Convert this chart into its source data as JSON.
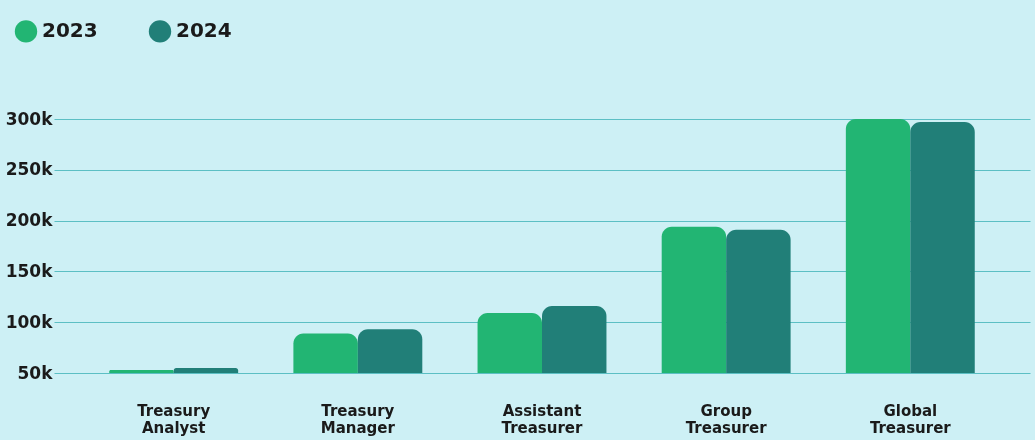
{
  "chart_data": {
    "type": "bar",
    "categories": [
      "Treasury Analyst",
      "Treasury Manager",
      "Assistant Treasurer",
      "Group Treasurer",
      "Global Treasurer"
    ],
    "series": [
      {
        "name": "2023",
        "color": "#22b573",
        "values": [
          53000,
          89000,
          109000,
          194000,
          300000
        ]
      },
      {
        "name": "2024",
        "color": "#217f78",
        "values": [
          55000,
          93000,
          116000,
          191000,
          297000
        ]
      }
    ],
    "ylim": [
      50000,
      300000
    ],
    "yticks": [
      {
        "value": 50000,
        "label": "50k"
      },
      {
        "value": 100000,
        "label": "100k"
      },
      {
        "value": 150000,
        "label": "150k"
      },
      {
        "value": 200000,
        "label": "200k"
      },
      {
        "value": 250000,
        "label": "250k"
      },
      {
        "value": 300000,
        "label": "300k"
      }
    ],
    "grid": "y",
    "legend": "top left"
  }
}
